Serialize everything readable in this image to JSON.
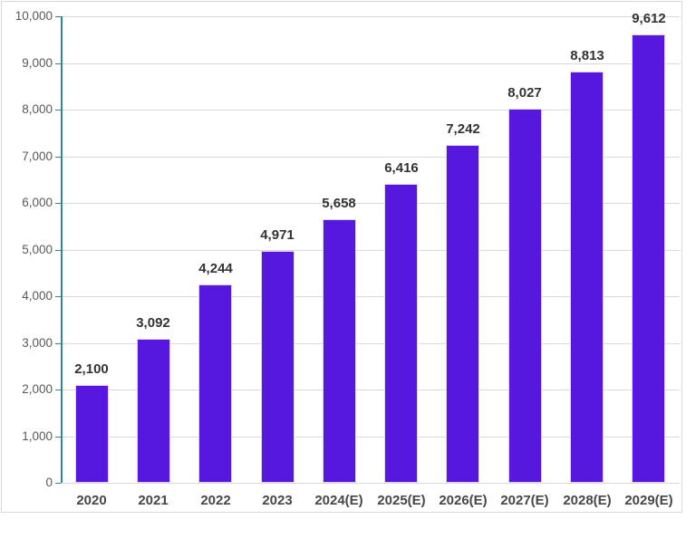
{
  "chart_data": {
    "type": "bar",
    "categories": [
      "2020",
      "2021",
      "2022",
      "2023",
      "2024(E)",
      "2025(E)",
      "2026(E)",
      "2027(E)",
      "2028(E)",
      "2029(E)"
    ],
    "values": [
      2100,
      3092,
      4244,
      4971,
      5658,
      6416,
      7242,
      8027,
      8813,
      9612
    ],
    "title": "",
    "xlabel": "",
    "ylabel": "",
    "ylim": [
      0,
      10000
    ],
    "ytick_step": 1000,
    "ytick_labels": [
      "0",
      "1,000",
      "2,000",
      "3,000",
      "4,000",
      "5,000",
      "6,000",
      "7,000",
      "8,000",
      "9,000",
      "10,000"
    ],
    "data_labels": [
      "2,100",
      "3,092",
      "4,244",
      "4,971",
      "5,658",
      "6,416",
      "7,242",
      "8,027",
      "8,813",
      "9,612"
    ],
    "grid": true,
    "legend": "none",
    "colors": {
      "bar_fill": "#5617df",
      "axis_line": "#31859c",
      "gridline": "#d9d9d9",
      "frame_border": "#d9d9d9",
      "data_label_text": "#333333",
      "x_label_text": "#474747",
      "y_label_text": "#595959"
    }
  }
}
